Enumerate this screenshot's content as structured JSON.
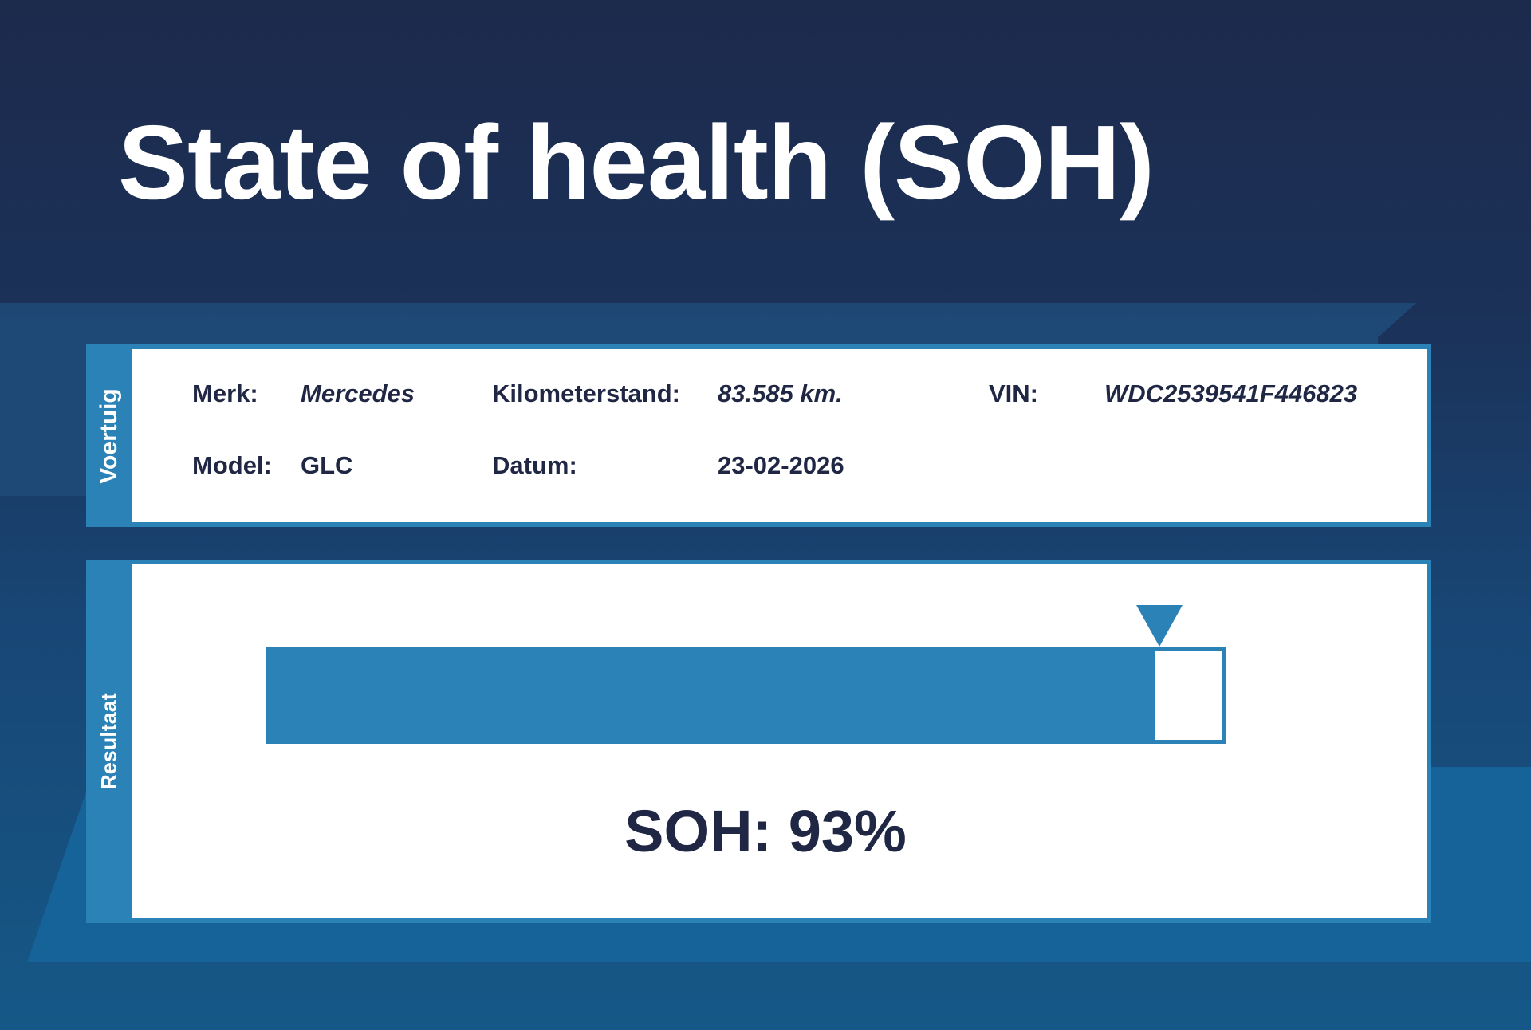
{
  "title": "State of health (SOH)",
  "vehicle": {
    "tab_label": "Voertuig",
    "merk_label": "Merk:",
    "merk_value": "Mercedes",
    "model_label": "Model:",
    "model_value": "GLC",
    "km_label": "Kilometerstand:",
    "km_value": "83.585 km.",
    "datum_label": "Datum:",
    "datum_value": "23-02-2026",
    "vin_label": "VIN:",
    "vin_value": "WDC2539541F446823"
  },
  "result": {
    "tab_label": "Resultaat",
    "soh_percent": 93,
    "soh_text": "SOH: 93%"
  },
  "colors": {
    "accent": "#2a82b6",
    "text": "#1f2744",
    "background_top": "#1c2a4c",
    "background_bottom": "#155887"
  }
}
